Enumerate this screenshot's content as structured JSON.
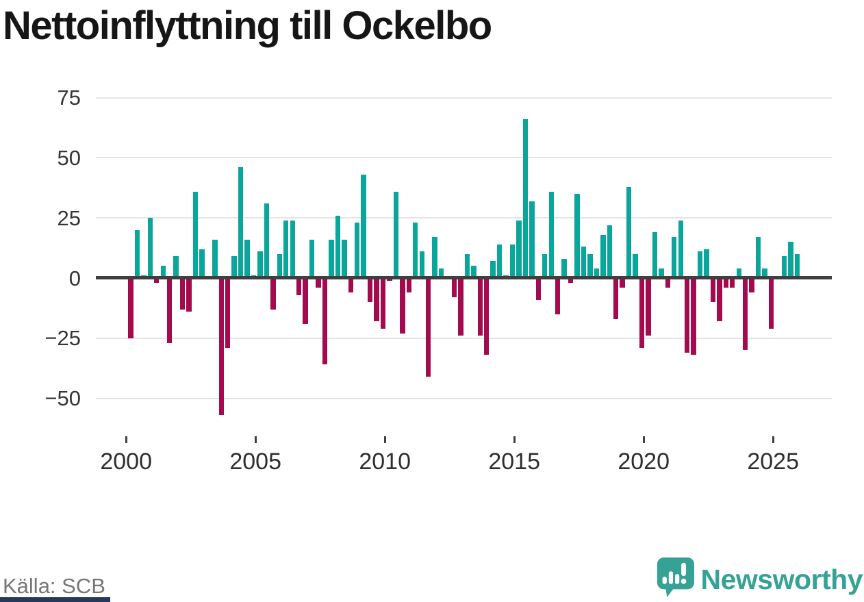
{
  "title": "Nettoinflyttning till Ockelbo",
  "source_label": "Källa: SCB",
  "logo": {
    "brand": "Newsworthy"
  },
  "colors": {
    "positive_bar": "#0aa69b",
    "negative_bar": "#a40a4e",
    "axis_line": "#3f3f3f",
    "gridline": "#e4e4e4",
    "title_text": "#161616",
    "tick_text": "#2e2e2e",
    "source_text": "#767676",
    "brand_teal": "#36a296",
    "bottom_strip_navy": "#24395b"
  },
  "chart_data": {
    "type": "bar",
    "title": "Nettoinflyttning till Ockelbo",
    "xlabel": "",
    "ylabel": "",
    "frequency": "quarterly",
    "start": {
      "year": 2000,
      "quarter": 1
    },
    "values": [
      -25,
      20,
      1,
      25,
      -2,
      5,
      -27,
      9,
      -13,
      -14,
      36,
      12,
      0,
      16,
      -57,
      -29,
      9,
      46,
      16,
      1,
      11,
      31,
      -13,
      10,
      24,
      24,
      -7,
      -19,
      16,
      -4,
      -36,
      16,
      26,
      16,
      -6,
      23,
      43,
      -10,
      -18,
      -21,
      -1,
      36,
      -23,
      -6,
      23,
      11,
      -41,
      17,
      4,
      0,
      -8,
      -24,
      10,
      5,
      -24,
      -32,
      7,
      14,
      1,
      14,
      24,
      66,
      32,
      -9,
      10,
      36,
      -15,
      8,
      -2,
      35,
      13,
      10,
      4,
      18,
      22,
      -17,
      -4,
      38,
      10,
      -29,
      -24,
      19,
      4,
      -4,
      17,
      24,
      -31,
      -32,
      11,
      12,
      -10,
      -18,
      -4,
      -4,
      4,
      -30,
      -6,
      17,
      4,
      -21,
      0,
      9,
      15,
      10
    ],
    "y_ticks": [
      {
        "v": 75,
        "label": "75"
      },
      {
        "v": 50,
        "label": "50"
      },
      {
        "v": 25,
        "label": "25"
      },
      {
        "v": 0,
        "label": "0"
      },
      {
        "v": -25,
        "label": "−25"
      },
      {
        "v": -50,
        "label": "−50"
      }
    ],
    "x_ticks": [
      {
        "year": 2000,
        "label": "2000"
      },
      {
        "year": 2005,
        "label": "2005"
      },
      {
        "year": 2010,
        "label": "2010"
      },
      {
        "year": 2015,
        "label": "2015"
      },
      {
        "year": 2020,
        "label": "2020"
      },
      {
        "year": 2025,
        "label": "2025"
      }
    ],
    "ylim": [
      -60,
      77
    ],
    "grid": true,
    "legend": false
  }
}
